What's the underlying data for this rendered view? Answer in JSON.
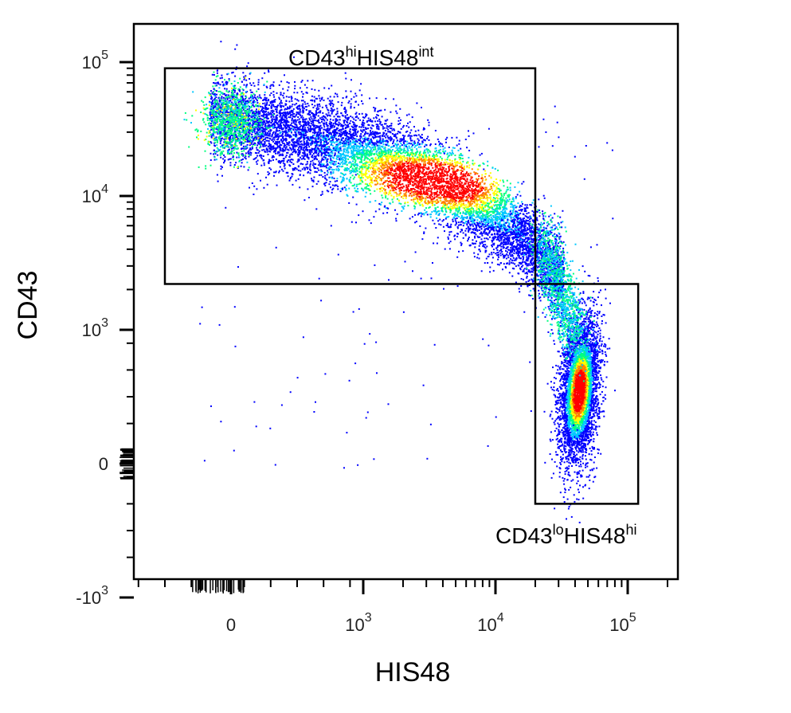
{
  "chart_data": {
    "type": "scatter",
    "subtype": "flow-cytometry-density-plot",
    "xlabel": "HIS48",
    "ylabel": "CD43",
    "x_scale": "biexponential",
    "y_scale": "biexponential",
    "xlim": [
      -1000,
      150000
    ],
    "ylim": [
      -1500,
      200000
    ],
    "x_ticks": [
      {
        "value": 0,
        "base": "0",
        "exp": ""
      },
      {
        "value": 1000,
        "base": "10",
        "exp": "3"
      },
      {
        "value": 10000,
        "base": "10",
        "exp": "4"
      },
      {
        "value": 100000,
        "base": "10",
        "exp": "5"
      }
    ],
    "y_ticks": [
      {
        "value": 100000,
        "base": "10",
        "exp": "5"
      },
      {
        "value": 10000,
        "base": "10",
        "exp": "4"
      },
      {
        "value": 1000,
        "base": "10",
        "exp": "3"
      },
      {
        "value": 0,
        "base": "0",
        "exp": ""
      },
      {
        "value": -1000,
        "base": "-10",
        "exp": "3"
      }
    ],
    "density_colormap": [
      "#0000ff",
      "#00c8ff",
      "#00ff80",
      "#ffff00",
      "#ff8000",
      "#ff0000"
    ],
    "populations": [
      {
        "x_center": 3500,
        "y_center": 13000,
        "relative_size": 0.62
      },
      {
        "x_center": 45000,
        "y_center": 550,
        "relative_size": 0.38
      }
    ],
    "gates": [
      {
        "label_base": "CD43",
        "label_sup1": "hi",
        "label_mid": "HIS48",
        "label_sup2": "int",
        "x_range": [
          -500,
          20000
        ],
        "y_range": [
          2200,
          90000
        ]
      },
      {
        "label_base": "CD43",
        "label_sup1": "lo",
        "label_mid": "HIS48",
        "label_sup2": "hi",
        "x_range": [
          20000,
          120000
        ],
        "y_range": [
          -300,
          2200
        ]
      }
    ]
  }
}
